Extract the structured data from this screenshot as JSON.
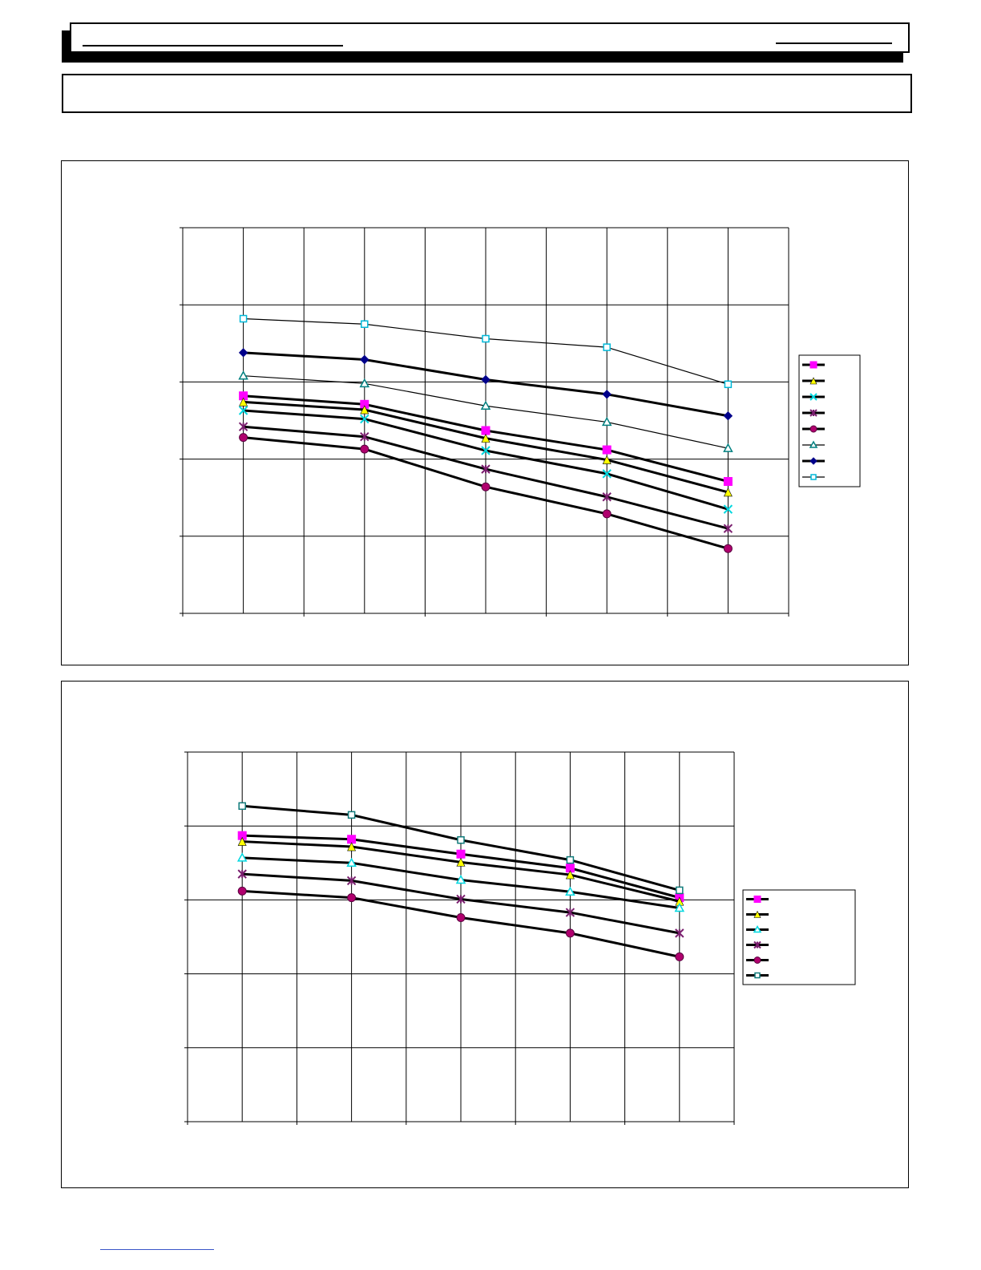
{
  "chart_data": [
    {
      "type": "line",
      "title": "",
      "xlabel": "",
      "ylabel": "",
      "x": [
        1,
        2,
        3,
        4,
        5
      ],
      "xlim": [
        0.5,
        5.5
      ],
      "ylim": [
        0,
        5
      ],
      "grid": true,
      "legend_position": "right",
      "series": [
        {
          "values": [
            2.82,
            2.71,
            2.37,
            2.12,
            1.71
          ],
          "color": "#ff00ff",
          "marker": "square",
          "weight": "heavy"
        },
        {
          "values": [
            2.74,
            2.64,
            2.27,
            1.99,
            1.57
          ],
          "color": "#ffff00",
          "marker": "triangle",
          "weight": "heavy"
        },
        {
          "values": [
            2.63,
            2.52,
            2.11,
            1.81,
            1.35
          ],
          "color": "#00d8e0",
          "marker": "x",
          "weight": "heavy"
        },
        {
          "values": [
            2.42,
            2.29,
            1.87,
            1.51,
            1.1
          ],
          "color": "#7a1e6e",
          "marker": "star",
          "weight": "heavy"
        },
        {
          "values": [
            2.28,
            2.13,
            1.64,
            1.29,
            0.84
          ],
          "color": "#b0006e",
          "marker": "circle",
          "weight": "heavy"
        },
        {
          "values": [
            3.08,
            2.98,
            2.69,
            2.48,
            2.14
          ],
          "color": "#008080",
          "marker": "triangle-open",
          "weight": "thin"
        },
        {
          "values": [
            3.38,
            3.29,
            3.03,
            2.84,
            2.56
          ],
          "color": "#00008b",
          "marker": "diamond",
          "weight": "heavy"
        },
        {
          "values": [
            3.82,
            3.75,
            3.56,
            3.45,
            2.97
          ],
          "color": "#00b8d8",
          "marker": "square-open",
          "weight": "thin"
        }
      ]
    },
    {
      "type": "line",
      "title": "",
      "xlabel": "",
      "ylabel": "",
      "x": [
        1,
        2,
        3,
        4,
        5
      ],
      "xlim": [
        0.5,
        5.5
      ],
      "ylim": [
        0,
        5
      ],
      "grid": true,
      "legend_position": "right",
      "series": [
        {
          "values": [
            3.87,
            3.82,
            3.62,
            3.43,
            3.03
          ],
          "color": "#ff00ff",
          "marker": "square",
          "weight": "heavy"
        },
        {
          "values": [
            3.79,
            3.72,
            3.51,
            3.34,
            2.98
          ],
          "color": "#ffff00",
          "marker": "triangle",
          "weight": "heavy"
        },
        {
          "values": [
            3.57,
            3.5,
            3.27,
            3.11,
            2.89
          ],
          "color": "#00d8e0",
          "marker": "triangle-open",
          "weight": "heavy"
        },
        {
          "values": [
            3.35,
            3.26,
            3.01,
            2.83,
            2.55
          ],
          "color": "#7a1e6e",
          "marker": "star",
          "weight": "heavy"
        },
        {
          "values": [
            3.12,
            3.03,
            2.76,
            2.55,
            2.23
          ],
          "color": "#b0006e",
          "marker": "circle",
          "weight": "heavy"
        },
        {
          "values": [
            4.27,
            4.15,
            3.81,
            3.54,
            3.13
          ],
          "color": "#0f7a7a",
          "marker": "square-open",
          "weight": "heavy"
        }
      ]
    }
  ]
}
